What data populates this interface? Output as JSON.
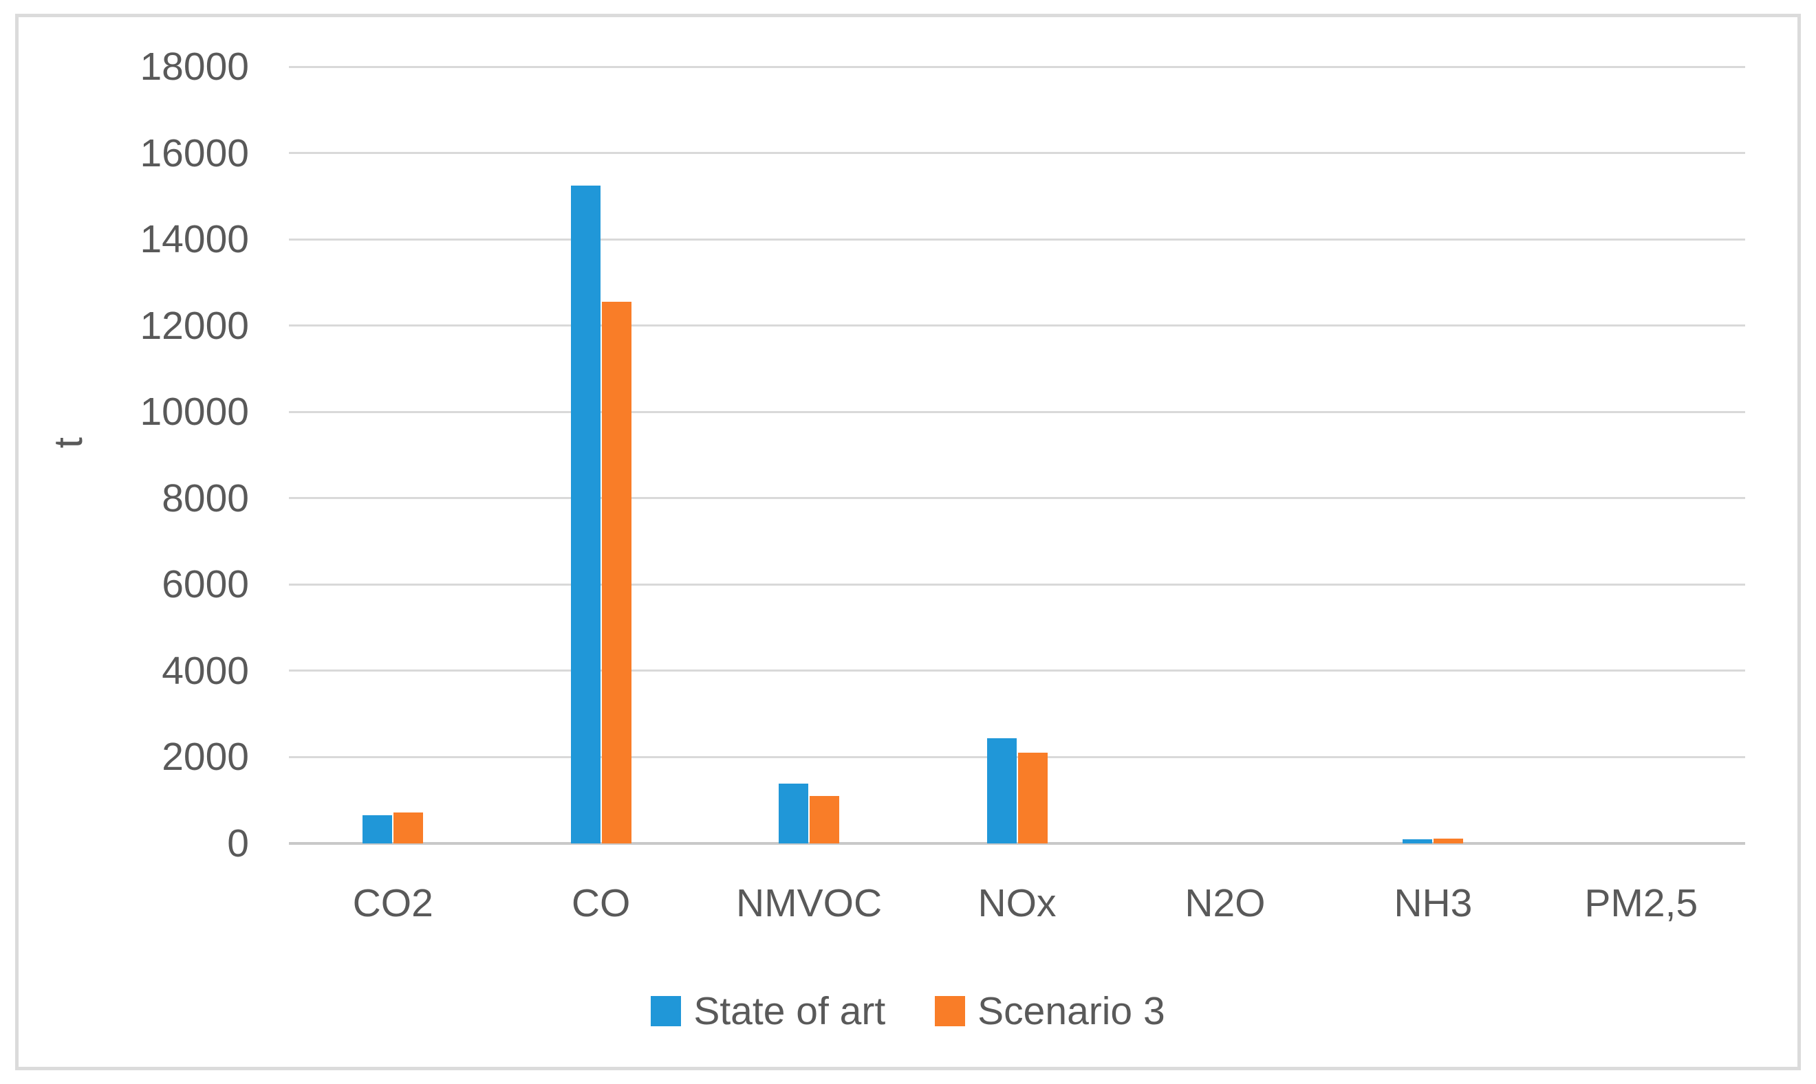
{
  "chart_data": {
    "type": "bar",
    "title": "",
    "ylabel": "t",
    "xlabel": "",
    "ylim": [
      0,
      18000
    ],
    "ytick_step": 2000,
    "y_tick_labels": [
      "0",
      "2000",
      "4000",
      "6000",
      "8000",
      "10000",
      "12000",
      "14000",
      "16000",
      "18000"
    ],
    "grid": true,
    "legend_position": "bottom",
    "categories": [
      "CO2",
      "CO",
      "NMVOC",
      "NOx",
      "N2O",
      "NH3",
      "PM2,5"
    ],
    "series": [
      {
        "name": "State of art",
        "color": "#2097d8",
        "values": [
          650,
          15250,
          1380,
          2430,
          0,
          100,
          0
        ]
      },
      {
        "name": "Scenario 3",
        "color": "#f97d28",
        "values": [
          720,
          12550,
          1100,
          2100,
          0,
          115,
          0
        ]
      }
    ]
  },
  "colors": {
    "text": "#595959",
    "gridline": "#d9d9d9",
    "axis_line": "#c8c8c8",
    "frame_border": "#dbdbdb",
    "background": "#ffffff"
  }
}
